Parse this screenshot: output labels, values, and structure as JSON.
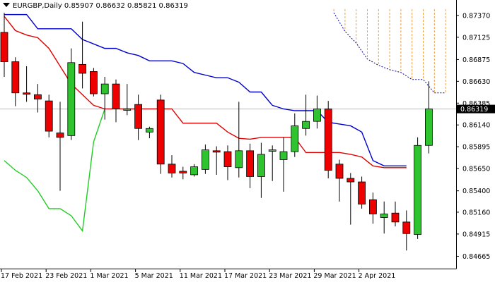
{
  "header": {
    "symbol": "EURGBP,Daily",
    "open": "0.85907",
    "high": "0.86632",
    "low": "0.85821",
    "close": "0.86319"
  },
  "chart_data": {
    "type": "candlestick",
    "symbol": "EURGBP",
    "timeframe": "Daily",
    "price_ticks": [
      "0.87370",
      "0.87125",
      "0.86875",
      "0.86630",
      "0.86385",
      "0.86140",
      "0.85895",
      "0.85650",
      "0.85400",
      "0.85160",
      "0.84915",
      "0.84665"
    ],
    "current_price": "0.86319",
    "date_ticks": [
      {
        "label": "17 Feb 2021",
        "index": 0
      },
      {
        "label": "23 Feb 2021",
        "index": 4
      },
      {
        "label": "1 Mar 2021",
        "index": 8
      },
      {
        "label": "5 Mar 2021",
        "index": 12
      },
      {
        "label": "11 Mar 2021",
        "index": 16
      },
      {
        "label": "17 Mar 2021",
        "index": 20
      },
      {
        "label": "23 Mar 2021",
        "index": 24
      },
      {
        "label": "29 Mar 2021",
        "index": 28
      },
      {
        "label": "2 Apr 2021",
        "index": 32
      }
    ],
    "ylim": [
      0.8455,
      0.8748
    ],
    "candles": [
      {
        "o": 0.8718,
        "h": 0.874,
        "l": 0.8668,
        "c": 0.8685
      },
      {
        "o": 0.8685,
        "h": 0.869,
        "l": 0.8635,
        "c": 0.865
      },
      {
        "o": 0.865,
        "h": 0.868,
        "l": 0.864,
        "c": 0.8649
      },
      {
        "o": 0.8648,
        "h": 0.866,
        "l": 0.8628,
        "c": 0.8643
      },
      {
        "o": 0.8641,
        "h": 0.8648,
        "l": 0.86,
        "c": 0.8607
      },
      {
        "o": 0.8605,
        "h": 0.864,
        "l": 0.854,
        "c": 0.86
      },
      {
        "o": 0.8602,
        "h": 0.87,
        "l": 0.8597,
        "c": 0.8684
      },
      {
        "o": 0.8682,
        "h": 0.873,
        "l": 0.8655,
        "c": 0.8672
      },
      {
        "o": 0.8674,
        "h": 0.8678,
        "l": 0.8646,
        "c": 0.8649
      },
      {
        "o": 0.8649,
        "h": 0.8668,
        "l": 0.862,
        "c": 0.866
      },
      {
        "o": 0.866,
        "h": 0.8665,
        "l": 0.8617,
        "c": 0.8632
      },
      {
        "o": 0.8632,
        "h": 0.866,
        "l": 0.8625,
        "c": 0.8632
      },
      {
        "o": 0.8637,
        "h": 0.8648,
        "l": 0.8597,
        "c": 0.861
      },
      {
        "o": 0.8606,
        "h": 0.8612,
        "l": 0.8599,
        "c": 0.861
      },
      {
        "o": 0.8642,
        "h": 0.8648,
        "l": 0.8559,
        "c": 0.857
      },
      {
        "o": 0.857,
        "h": 0.858,
        "l": 0.8555,
        "c": 0.856
      },
      {
        "o": 0.8562,
        "h": 0.8567,
        "l": 0.8553,
        "c": 0.856
      },
      {
        "o": 0.8558,
        "h": 0.857,
        "l": 0.8556,
        "c": 0.8567
      },
      {
        "o": 0.8564,
        "h": 0.8592,
        "l": 0.8559,
        "c": 0.8586
      },
      {
        "o": 0.8585,
        "h": 0.859,
        "l": 0.8558,
        "c": 0.8584
      },
      {
        "o": 0.8584,
        "h": 0.8591,
        "l": 0.8552,
        "c": 0.8567
      },
      {
        "o": 0.8566,
        "h": 0.864,
        "l": 0.8555,
        "c": 0.8585
      },
      {
        "o": 0.8585,
        "h": 0.8593,
        "l": 0.8543,
        "c": 0.8556
      },
      {
        "o": 0.8556,
        "h": 0.8594,
        "l": 0.8532,
        "c": 0.8581
      },
      {
        "o": 0.8586,
        "h": 0.8591,
        "l": 0.8551,
        "c": 0.8586
      },
      {
        "o": 0.8575,
        "h": 0.86,
        "l": 0.8539,
        "c": 0.8584
      },
      {
        "o": 0.8584,
        "h": 0.8627,
        "l": 0.8578,
        "c": 0.8613
      },
      {
        "o": 0.861,
        "h": 0.8648,
        "l": 0.8602,
        "c": 0.8618
      },
      {
        "o": 0.8618,
        "h": 0.8647,
        "l": 0.861,
        "c": 0.8632
      },
      {
        "o": 0.8632,
        "h": 0.8641,
        "l": 0.8554,
        "c": 0.8563
      },
      {
        "o": 0.857,
        "h": 0.8575,
        "l": 0.8528,
        "c": 0.8554
      },
      {
        "o": 0.8554,
        "h": 0.856,
        "l": 0.8502,
        "c": 0.855
      },
      {
        "o": 0.855,
        "h": 0.8556,
        "l": 0.852,
        "c": 0.8525
      },
      {
        "o": 0.853,
        "h": 0.8538,
        "l": 0.8503,
        "c": 0.8514
      },
      {
        "o": 0.851,
        "h": 0.8528,
        "l": 0.8492,
        "c": 0.8514
      },
      {
        "o": 0.8515,
        "h": 0.8528,
        "l": 0.85,
        "c": 0.8505
      },
      {
        "o": 0.8505,
        "h": 0.8518,
        "l": 0.8473,
        "c": 0.8492
      },
      {
        "o": 0.8491,
        "h": 0.86,
        "l": 0.8486,
        "c": 0.8591
      },
      {
        "o": 0.8591,
        "h": 0.8663,
        "l": 0.8582,
        "c": 0.8632
      }
    ],
    "kijun_sen": [
      0.8736,
      0.872,
      0.8715,
      0.8712,
      0.87,
      0.868,
      0.866,
      0.8648,
      0.8636,
      0.8632,
      0.8632,
      0.8632,
      0.8632,
      0.8632,
      0.8632,
      0.8632,
      0.8616,
      0.8616,
      0.8616,
      0.8616,
      0.8606,
      0.8599,
      0.8598,
      0.86,
      0.86,
      0.86,
      0.86,
      0.8583,
      0.8583,
      0.8583,
      0.8583,
      0.8581,
      0.8578,
      0.8568,
      0.8566,
      0.8566,
      0.8566
    ],
    "tenkan_sen": [
      0.8738,
      0.8738,
      0.8738,
      0.8722,
      0.8722,
      0.8722,
      0.8722,
      0.871,
      0.8705,
      0.87,
      0.87,
      0.8695,
      0.8692,
      0.8686,
      0.8686,
      0.8686,
      0.8683,
      0.8673,
      0.867,
      0.8667,
      0.8667,
      0.8662,
      0.8651,
      0.8651,
      0.8636,
      0.8632,
      0.863,
      0.863,
      0.863,
      0.8617,
      0.8615,
      0.8613,
      0.8606,
      0.8574,
      0.8568,
      0.8568,
      0.8568
    ],
    "chikou_span": [
      0.8574,
      0.8563,
      0.8555,
      0.854,
      0.852,
      0.852,
      0.8512,
      0.8495,
      0.8595,
      0.8632
    ],
    "kumo_top": [
      0.8744,
      0.8744,
      0.8744,
      0.8744,
      0.8744,
      0.8744,
      0.8744,
      0.8744,
      0.8744,
      0.8744,
      0.8744
    ],
    "kumo_bottom": [
      0.874,
      0.8719,
      0.8706,
      0.8688,
      0.8681,
      0.8676,
      0.8673,
      0.8665,
      0.8665,
      0.865,
      0.865
    ],
    "colors": {
      "bull": "#2fc42f",
      "bear": "#ee0000",
      "kijun": "#e00000",
      "tenkan": "#0000cc",
      "chikou": "#22cc22",
      "kumo": "#f0a040",
      "price_label_bg": "#000000",
      "grid_line": "#bdbdbd"
    }
  }
}
